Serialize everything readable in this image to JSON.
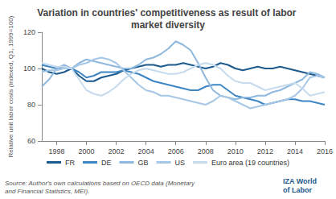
{
  "chart_data": {
    "type": "line",
    "title": "Variation in countries' competitiveness as result of labor market diversity",
    "ylabel": "Relative unit labor costs (indexed, Q1, 1999=100)",
    "source": "Source: Author's own calculations based on OECD data (Monetary and Financial Statistics, MEI).",
    "logo": "IZA World of Labor",
    "categories": [
      null,
      null,
      "1998",
      null,
      null,
      null,
      "2000",
      null,
      null,
      null,
      "2002",
      null,
      null,
      null,
      "2004",
      null,
      null,
      null,
      "2006",
      null,
      null,
      null,
      "2008",
      null,
      null,
      null,
      "2010",
      null,
      null,
      null,
      "2012",
      null,
      null,
      null,
      "2014",
      null,
      null,
      null,
      "2016"
    ],
    "series": [
      {
        "name": "FR",
        "color": "#1d5a8e",
        "values": [
          100,
          98,
          97,
          98,
          100,
          96,
          93,
          93,
          95,
          96,
          97,
          99,
          100,
          101,
          102,
          102,
          101,
          102,
          102,
          103,
          102,
          101,
          100,
          101,
          103,
          102,
          100,
          99,
          100,
          101,
          100,
          100,
          101,
          100,
          99,
          98,
          97,
          96,
          95
        ]
      },
      {
        "name": "DE",
        "color": "#3f86c4",
        "values": [
          102,
          101,
          100,
          101,
          100,
          98,
          95,
          96,
          98,
          98,
          98,
          99,
          98,
          97,
          95,
          93,
          92,
          91,
          90,
          89,
          88,
          88,
          90,
          91,
          91,
          88,
          85,
          84,
          83,
          82,
          80,
          81,
          82,
          83,
          83,
          82,
          82,
          81,
          80
        ]
      },
      {
        "name": "GB",
        "color": "#8fb8de",
        "values": [
          90,
          94,
          100,
          102,
          100,
          103,
          105,
          104,
          103,
          102,
          101,
          100,
          100,
          102,
          105,
          106,
          108,
          111,
          115,
          113,
          110,
          103,
          95,
          88,
          85,
          84,
          83,
          84,
          84,
          85,
          85,
          87,
          88,
          90,
          92,
          94,
          98,
          97,
          95
        ]
      },
      {
        "name": "US",
        "color": "#a6c7e5",
        "values": [
          98,
          99,
          99,
          100,
          100,
          102,
          103,
          105,
          106,
          105,
          103,
          99,
          95,
          91,
          88,
          87,
          85,
          85,
          84,
          83,
          82,
          81,
          80,
          82,
          85,
          84,
          82,
          80,
          78,
          79,
          80,
          81,
          82,
          83,
          85,
          89,
          95,
          96,
          95
        ]
      },
      {
        "name": "Euro area (19 countries)",
        "color": "#c7dbef",
        "values": [
          103,
          102,
          101,
          101,
          100,
          94,
          88,
          86,
          85,
          87,
          90,
          94,
          97,
          99,
          100,
          99,
          98,
          97,
          97,
          98,
          100,
          102,
          103,
          102,
          100,
          96,
          93,
          92,
          92,
          90,
          88,
          89,
          90,
          91,
          92,
          89,
          85,
          86,
          87
        ]
      }
    ],
    "ylim": [
      60,
      120
    ],
    "yticks": [
      60,
      80,
      100,
      120
    ],
    "grid": false,
    "legend": "bottom"
  }
}
